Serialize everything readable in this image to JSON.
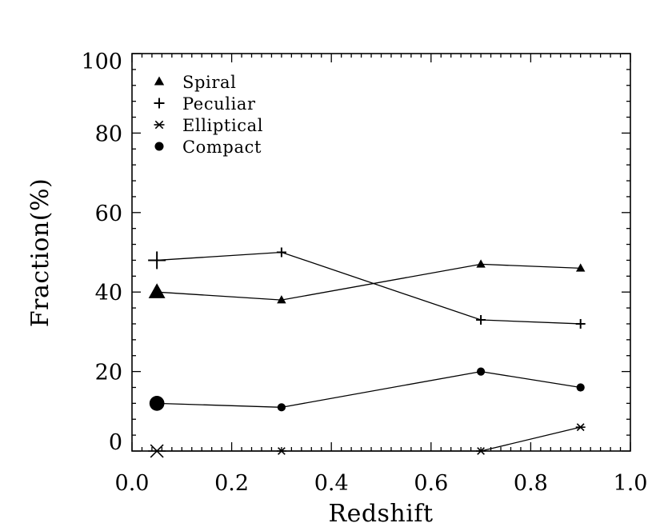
{
  "chart_data": {
    "type": "line",
    "title": "",
    "xlabel": "Redshift",
    "ylabel": "Fraction(%)",
    "xlim": [
      0.0,
      1.0
    ],
    "ylim": [
      0,
      100
    ],
    "xticks": [
      "0.0",
      "0.2",
      "0.4",
      "0.6",
      "0.8",
      "1.0"
    ],
    "yticks": [
      "0",
      "20",
      "40",
      "60",
      "80",
      "100"
    ],
    "grid": false,
    "legend_position": "top-left",
    "x": [
      0.05,
      0.3,
      0.7,
      0.9
    ],
    "series": [
      {
        "name": "Spiral",
        "marker": "triangle",
        "values": [
          40,
          38,
          47,
          46
        ]
      },
      {
        "name": "Peculiar",
        "marker": "plus",
        "values": [
          48,
          50,
          33,
          32
        ]
      },
      {
        "name": "Elliptical",
        "marker": "asterisk",
        "values": [
          0,
          0,
          0,
          6
        ]
      },
      {
        "name": "Compact",
        "marker": "circle",
        "values": [
          12,
          11,
          20,
          16
        ]
      }
    ],
    "colors": {
      "line": "#000000",
      "background": "#ffffff"
    }
  }
}
